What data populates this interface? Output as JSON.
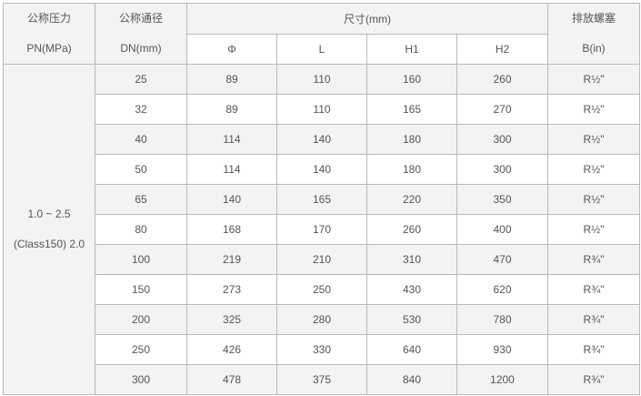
{
  "header": {
    "pressure": [
      "公称压力",
      "PN(MPa)"
    ],
    "diameter": [
      "公称通径",
      "DN(mm)"
    ],
    "size": "尺寸(mm)",
    "size_cols": [
      "Φ",
      "L",
      "H1",
      "H2"
    ],
    "plug": [
      "排放螺塞",
      "B(in)"
    ]
  },
  "pressure_value": [
    "1.0 ~ 2.5",
    "(Class150) 2.0"
  ],
  "rows": [
    [
      "25",
      "89",
      "110",
      "160",
      "260",
      "R½\""
    ],
    [
      "32",
      "89",
      "110",
      "165",
      "270",
      "R½\""
    ],
    [
      "40",
      "114",
      "140",
      "180",
      "300",
      "R½\""
    ],
    [
      "50",
      "114",
      "140",
      "180",
      "300",
      "R½\""
    ],
    [
      "65",
      "140",
      "165",
      "220",
      "350",
      "R½\""
    ],
    [
      "80",
      "168",
      "170",
      "260",
      "400",
      "R½\""
    ],
    [
      "100",
      "219",
      "210",
      "310",
      "470",
      "R¾\""
    ],
    [
      "150",
      "273",
      "250",
      "430",
      "620",
      "R¾\""
    ],
    [
      "200",
      "325",
      "280",
      "530",
      "780",
      "R¾\""
    ],
    [
      "250",
      "426",
      "330",
      "640",
      "930",
      "R¾\""
    ],
    [
      "300",
      "478",
      "375",
      "840",
      "1200",
      "R¾\""
    ]
  ]
}
